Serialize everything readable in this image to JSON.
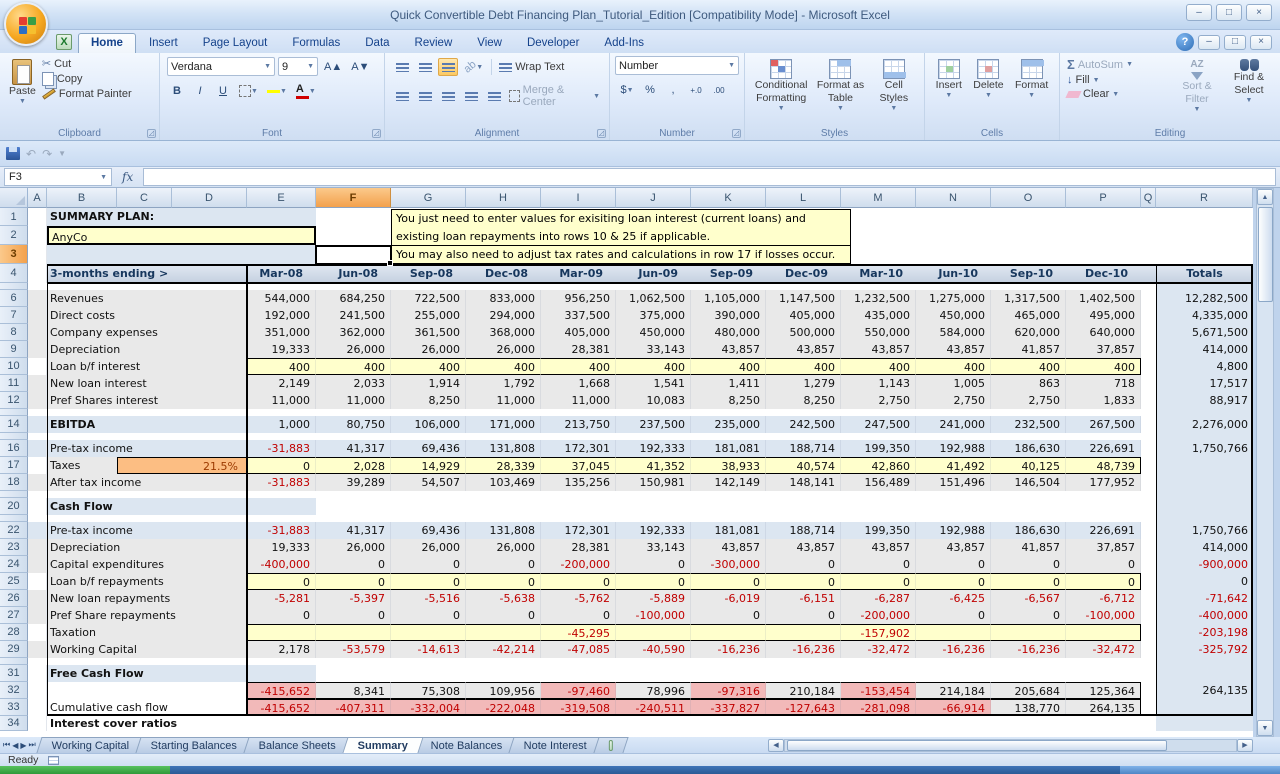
{
  "window": {
    "title": "Quick Convertible Debt Financing Plan_Tutorial_Edition  [Compatibility Mode] - Microsoft Excel"
  },
  "icons": {
    "dropdown": "▼",
    "close": "×",
    "minimize": "–",
    "maximize": "□",
    "help": "?",
    "sigma": "Σ",
    "scissors": "✂",
    "undo": "↶",
    "redo": "↷",
    "fx": "fx",
    "left_arrow": "◀",
    "right_arrow": "▶",
    "first": "⏮",
    "last": "⏭",
    "up": "▲",
    "down": "▼",
    "dollar": "$",
    "percent": "%",
    "comma": ",",
    "dec_inc": "+.0",
    "dec_dec": ".00",
    "bold": "B",
    "italic": "I",
    "underline": "U",
    "grow": "A▲",
    "shrink": "A▼",
    "fill_arrow": "↓",
    "az": "AZ",
    "xl": "X"
  },
  "ribbon": {
    "tabs": [
      "Home",
      "Insert",
      "Page Layout",
      "Formulas",
      "Data",
      "Review",
      "View",
      "Developer",
      "Add-Ins"
    ],
    "active_tab": "Home",
    "clipboard": {
      "label": "Clipboard",
      "paste": "Paste",
      "cut": "Cut",
      "copy": "Copy",
      "format_painter": "Format Painter"
    },
    "font": {
      "label": "Font",
      "family": "Verdana",
      "size": "9"
    },
    "alignment": {
      "label": "Alignment",
      "wrap": "Wrap Text",
      "merge": "Merge & Center"
    },
    "number": {
      "label": "Number",
      "format": "Number"
    },
    "styles": {
      "label": "Styles",
      "items": [
        "Conditional Formatting",
        "Format as Table",
        "Cell Styles"
      ]
    },
    "cells": {
      "label": "Cells",
      "items": [
        "Insert",
        "Delete",
        "Format"
      ]
    },
    "editing": {
      "label": "Editing",
      "autosum": "AutoSum",
      "fill": "Fill",
      "clear": "Clear",
      "sort": "Sort & Filter",
      "find": "Find & Select"
    }
  },
  "formula_bar": {
    "name_box": "F3",
    "formula": ""
  },
  "note": {
    "lines": [
      "You just need to enter values for exisiting loan interest (current loans) and",
      "existing loan repayments into rows 10 & 25 if applicable.",
      "You may also need to adjust tax rates and calculations in row 17 if losses occur."
    ]
  },
  "colors": {
    "selection_orange": "#f3a14c",
    "input_yellow": "#ffffcc",
    "band_blue": "#dce6f1",
    "negative_pink": "#f2b9b9",
    "negative_text": "#c00000",
    "tax_orange": "#fcbe83"
  },
  "sheet": {
    "title_label": "SUMMARY PLAN:",
    "company": "AnyCo",
    "period_label": "3-months ending >",
    "totals_label": "Totals",
    "tax_rate": "21.5%",
    "selected_cell": "F3",
    "selected_col": "F",
    "selected_row": "3",
    "col_letters": [
      "A",
      "B",
      "C",
      "D",
      "E",
      "F",
      "G",
      "H",
      "I",
      "J",
      "K",
      "L",
      "M",
      "N",
      "O",
      "P",
      "Q",
      "R"
    ],
    "columns": [
      "Mar-08",
      "Jun-08",
      "Sep-08",
      "Dec-08",
      "Mar-09",
      "Jun-09",
      "Sep-09",
      "Dec-09",
      "Mar-10",
      "Jun-10",
      "Sep-10",
      "Dec-10"
    ],
    "rows": [
      {
        "num": "1",
        "type": "r1"
      },
      {
        "num": "2",
        "type": "r2"
      },
      {
        "num": "3",
        "type": "r3"
      },
      {
        "num": "4",
        "type": "header"
      },
      {
        "num": "5",
        "type": "spacer"
      },
      {
        "num": "6",
        "type": "plain",
        "label": "Revenues",
        "values": [
          "544,000",
          "684,250",
          "722,500",
          "833,000",
          "956,250",
          "1,062,500",
          "1,105,000",
          "1,147,500",
          "1,232,500",
          "1,275,000",
          "1,317,500",
          "1,402,500"
        ],
        "total": "12,282,500"
      },
      {
        "num": "7",
        "type": "plain",
        "label": "Direct costs",
        "values": [
          "192,000",
          "241,500",
          "255,000",
          "294,000",
          "337,500",
          "375,000",
          "390,000",
          "405,000",
          "435,000",
          "450,000",
          "465,000",
          "495,000"
        ],
        "total": "4,335,000"
      },
      {
        "num": "8",
        "type": "plain",
        "label": "Company expenses",
        "values": [
          "351,000",
          "362,000",
          "361,500",
          "368,000",
          "405,000",
          "450,000",
          "480,000",
          "500,000",
          "550,000",
          "584,000",
          "620,000",
          "640,000"
        ],
        "total": "5,671,500"
      },
      {
        "num": "9",
        "type": "plain",
        "label": "Depreciation",
        "values": [
          "19,333",
          "26,000",
          "26,000",
          "26,000",
          "28,381",
          "33,143",
          "43,857",
          "43,857",
          "43,857",
          "43,857",
          "41,857",
          "37,857"
        ],
        "total": "414,000"
      },
      {
        "num": "10",
        "type": "yellow",
        "label": "Loan b/f interest",
        "values": [
          "400",
          "400",
          "400",
          "400",
          "400",
          "400",
          "400",
          "400",
          "400",
          "400",
          "400",
          "400"
        ],
        "total": "4,800"
      },
      {
        "num": "11",
        "type": "plain",
        "label": "New loan interest",
        "values": [
          "2,149",
          "2,033",
          "1,914",
          "1,792",
          "1,668",
          "1,541",
          "1,411",
          "1,279",
          "1,143",
          "1,005",
          "863",
          "718"
        ],
        "total": "17,517"
      },
      {
        "num": "12",
        "type": "plain",
        "label": "Pref Shares interest",
        "values": [
          "11,000",
          "11,000",
          "8,250",
          "11,000",
          "11,000",
          "10,083",
          "8,250",
          "8,250",
          "2,750",
          "2,750",
          "2,750",
          "1,833"
        ],
        "total": "88,917"
      },
      {
        "num": "13",
        "type": "spacer"
      },
      {
        "num": "14",
        "type": "blue",
        "bold": true,
        "label": "EBITDA",
        "values": [
          "1,000",
          "80,750",
          "106,000",
          "171,000",
          "213,750",
          "237,500",
          "235,000",
          "242,500",
          "247,500",
          "241,000",
          "232,500",
          "267,500"
        ],
        "total": "2,276,000"
      },
      {
        "num": "15",
        "type": "spacer"
      },
      {
        "num": "16",
        "type": "blue",
        "label": "Pre-tax income",
        "values": [
          "-31,883",
          "41,317",
          "69,436",
          "131,808",
          "172,301",
          "192,333",
          "181,081",
          "188,714",
          "199,350",
          "192,988",
          "186,630",
          "226,691"
        ],
        "total": "1,750,766"
      },
      {
        "num": "17",
        "type": "taxes",
        "label": "Taxes",
        "values": [
          "0",
          "2,028",
          "14,929",
          "28,339",
          "37,045",
          "41,352",
          "38,933",
          "40,574",
          "42,860",
          "41,492",
          "40,125",
          "48,739"
        ],
        "total": ""
      },
      {
        "num": "18",
        "type": "plain",
        "label": "After tax income",
        "values": [
          "-31,883",
          "39,289",
          "54,507",
          "103,469",
          "135,256",
          "150,981",
          "142,149",
          "148,141",
          "156,489",
          "151,496",
          "146,504",
          "177,952"
        ],
        "total": ""
      },
      {
        "num": "19",
        "type": "spacer"
      },
      {
        "num": "20",
        "type": "section",
        "label": "Cash Flow"
      },
      {
        "num": "21",
        "type": "spacer"
      },
      {
        "num": "22",
        "type": "blue",
        "label": "Pre-tax income",
        "values": [
          "-31,883",
          "41,317",
          "69,436",
          "131,808",
          "172,301",
          "192,333",
          "181,081",
          "188,714",
          "199,350",
          "192,988",
          "186,630",
          "226,691"
        ],
        "total": "1,750,766"
      },
      {
        "num": "23",
        "type": "plain",
        "label": "Depreciation",
        "values": [
          "19,333",
          "26,000",
          "26,000",
          "26,000",
          "28,381",
          "33,143",
          "43,857",
          "43,857",
          "43,857",
          "43,857",
          "41,857",
          "37,857"
        ],
        "total": "414,000"
      },
      {
        "num": "24",
        "type": "plain",
        "label": "Capital expenditures",
        "values": [
          "-400,000",
          "0",
          "0",
          "0",
          "-200,000",
          "0",
          "-300,000",
          "0",
          "0",
          "0",
          "0",
          "0"
        ],
        "total": "-900,000"
      },
      {
        "num": "25",
        "type": "yellow",
        "label": "Loan b/f repayments",
        "values": [
          "0",
          "0",
          "0",
          "0",
          "0",
          "0",
          "0",
          "0",
          "0",
          "0",
          "0",
          "0"
        ],
        "total": "0"
      },
      {
        "num": "26",
        "type": "plain",
        "label": "New loan repayments",
        "values": [
          "-5,281",
          "-5,397",
          "-5,516",
          "-5,638",
          "-5,762",
          "-5,889",
          "-6,019",
          "-6,151",
          "-6,287",
          "-6,425",
          "-6,567",
          "-6,712"
        ],
        "total": "-71,642"
      },
      {
        "num": "27",
        "type": "plain",
        "label": "Pref Share repayments",
        "values": [
          "0",
          "0",
          "0",
          "0",
          "0",
          "-100,000",
          "0",
          "0",
          "-200,000",
          "0",
          "0",
          "-100,000"
        ],
        "total": "-400,000"
      },
      {
        "num": "28",
        "type": "yellow",
        "label": "Taxation",
        "values": [
          "",
          "",
          "",
          "",
          "-45,295",
          "",
          "",
          "",
          "-157,902",
          "",
          "",
          ""
        ],
        "total": "-203,198"
      },
      {
        "num": "29",
        "type": "plain",
        "label": "Working Capital",
        "values": [
          "2,178",
          "-53,579",
          "-14,613",
          "-42,214",
          "-47,085",
          "-40,590",
          "-16,236",
          "-16,236",
          "-32,472",
          "-16,236",
          "-16,236",
          "-32,472"
        ],
        "total": "-325,792"
      },
      {
        "num": "30",
        "type": "spacer"
      },
      {
        "num": "31",
        "type": "section",
        "label": "Free Cash Flow"
      },
      {
        "num": "32",
        "type": "highlight",
        "label": "",
        "values": [
          "-415,652",
          "8,341",
          "75,308",
          "109,956",
          "-97,460",
          "78,996",
          "-97,316",
          "210,184",
          "-153,454",
          "214,184",
          "205,684",
          "125,364"
        ],
        "total": "264,135"
      },
      {
        "num": "33",
        "type": "highlight",
        "label": "Cumulative cash flow",
        "values": [
          "-415,652",
          "-407,311",
          "-332,004",
          "-222,048",
          "-319,508",
          "-240,511",
          "-337,827",
          "-127,643",
          "-281,098",
          "-66,914",
          "138,770",
          "264,135"
        ],
        "total": ""
      },
      {
        "num": "34",
        "type": "partial",
        "label": "Interest cover ratios"
      }
    ]
  },
  "sheet_tabs": {
    "names": [
      "Working Capital",
      "Starting Balances",
      "Balance Sheets",
      "Summary",
      "Note Balances",
      "Note Interest"
    ],
    "active": "Summary"
  },
  "status": {
    "ready": "Ready"
  }
}
